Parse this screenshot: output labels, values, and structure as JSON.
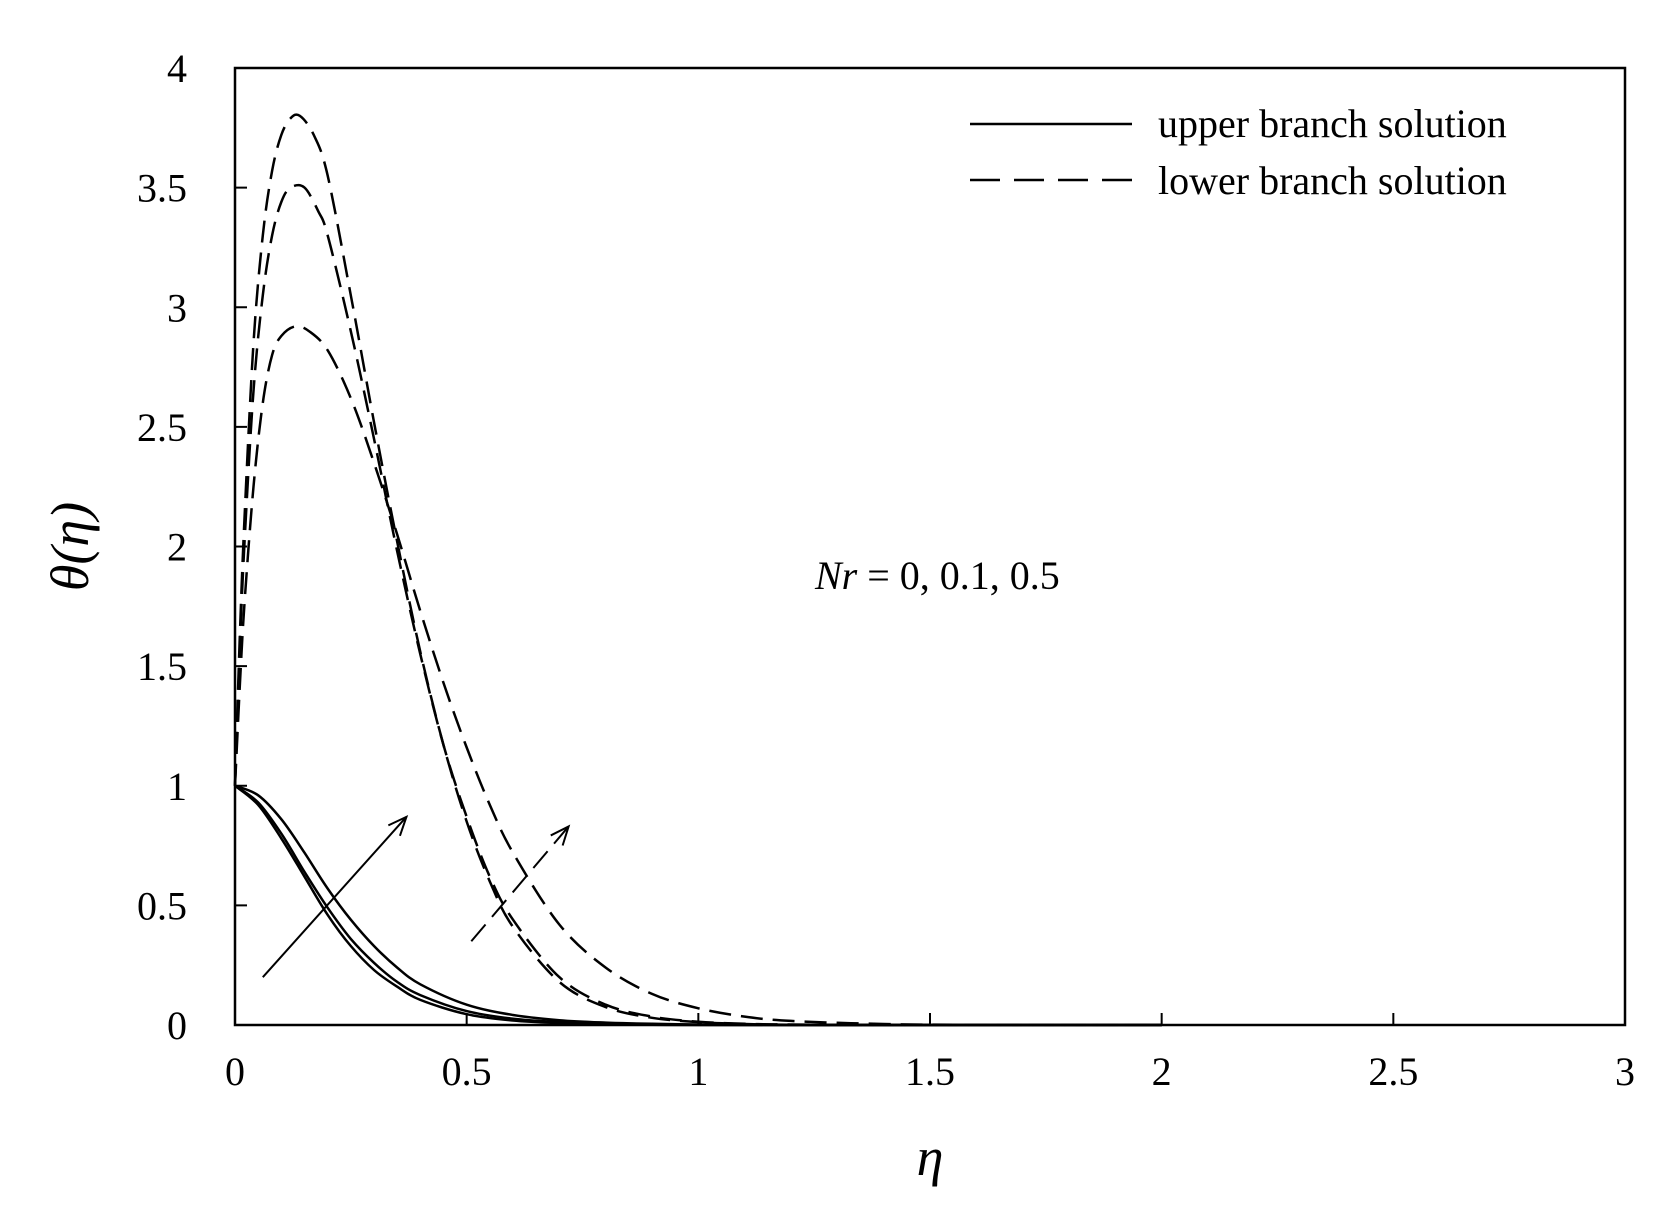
{
  "chart_data": {
    "type": "line",
    "xlabel": "η",
    "ylabel": "θ(η)",
    "xlim": [
      0,
      3
    ],
    "ylim": [
      0,
      4
    ],
    "x_ticks": [
      "0",
      "0.5",
      "1",
      "1.5",
      "2",
      "2.5",
      "3"
    ],
    "y_ticks": [
      "0",
      "0.5",
      "1",
      "1.5",
      "2",
      "2.5",
      "3",
      "3.5",
      "4"
    ],
    "grid": false,
    "legend_position": "top-right",
    "legend": [
      {
        "label": "upper branch solution",
        "style": "solid"
      },
      {
        "label": "lower branch solution",
        "style": "dashed"
      }
    ],
    "annotation": {
      "var": "Nr",
      "text": " = 0, 0.1, 0.5"
    },
    "line_color": "#000000",
    "series": [
      {
        "branch": "upper",
        "style": "solid",
        "x": [
          0,
          0.05,
          0.1,
          0.15,
          0.2,
          0.25,
          0.3,
          0.35,
          0.4,
          0.5,
          0.6,
          0.7,
          0.8,
          0.9,
          1.0,
          1.2,
          1.5,
          2.0
        ],
        "y": [
          1,
          0.96,
          0.86,
          0.72,
          0.57,
          0.44,
          0.33,
          0.24,
          0.17,
          0.085,
          0.042,
          0.02,
          0.01,
          0.005,
          0.002,
          0.0005,
          0,
          0
        ]
      },
      {
        "branch": "upper",
        "style": "solid",
        "x": [
          0,
          0.05,
          0.1,
          0.15,
          0.2,
          0.25,
          0.3,
          0.35,
          0.4,
          0.5,
          0.6,
          0.7,
          0.8,
          0.9,
          1.0,
          1.2,
          1.5,
          2.0
        ],
        "y": [
          1,
          0.93,
          0.8,
          0.64,
          0.49,
          0.36,
          0.26,
          0.18,
          0.125,
          0.058,
          0.026,
          0.012,
          0.005,
          0.002,
          0.001,
          0,
          0,
          0
        ]
      },
      {
        "branch": "upper",
        "style": "solid",
        "x": [
          0,
          0.05,
          0.1,
          0.15,
          0.2,
          0.25,
          0.3,
          0.35,
          0.4,
          0.5,
          0.6,
          0.7,
          0.8,
          0.9,
          1.0,
          1.2,
          1.5,
          2.0
        ],
        "y": [
          1,
          0.92,
          0.78,
          0.62,
          0.46,
          0.33,
          0.23,
          0.16,
          0.105,
          0.045,
          0.019,
          0.008,
          0.003,
          0.001,
          0,
          0,
          0,
          0
        ]
      },
      {
        "branch": "lower",
        "style": "dashed",
        "x": [
          0,
          0.01,
          0.02,
          0.04,
          0.06,
          0.08,
          0.1,
          0.13,
          0.16,
          0.2,
          0.25,
          0.3,
          0.35,
          0.4,
          0.45,
          0.5,
          0.55,
          0.6,
          0.7,
          0.8,
          0.9,
          1.0,
          1.1,
          1.2,
          1.4,
          1.6,
          2.0
        ],
        "y": [
          1,
          1.4,
          1.75,
          2.25,
          2.6,
          2.8,
          2.88,
          2.92,
          2.9,
          2.82,
          2.62,
          2.35,
          2.05,
          1.73,
          1.43,
          1.16,
          0.92,
          0.72,
          0.42,
          0.24,
          0.13,
          0.07,
          0.035,
          0.017,
          0.004,
          0.001,
          0
        ]
      },
      {
        "branch": "lower",
        "style": "dashed",
        "x": [
          0,
          0.01,
          0.02,
          0.04,
          0.06,
          0.08,
          0.1,
          0.12,
          0.15,
          0.18,
          0.2,
          0.25,
          0.3,
          0.35,
          0.4,
          0.45,
          0.5,
          0.55,
          0.6,
          0.7,
          0.8,
          0.9,
          1.0,
          1.1,
          1.2,
          1.4,
          2.0
        ],
        "y": [
          1,
          1.55,
          2.0,
          2.65,
          3.05,
          3.3,
          3.44,
          3.5,
          3.5,
          3.4,
          3.3,
          2.9,
          2.45,
          1.98,
          1.55,
          1.17,
          0.87,
          0.62,
          0.44,
          0.2,
          0.085,
          0.035,
          0.014,
          0.005,
          0.002,
          0,
          0
        ]
      },
      {
        "branch": "lower",
        "style": "dashed",
        "x": [
          0,
          0.01,
          0.02,
          0.04,
          0.06,
          0.08,
          0.1,
          0.12,
          0.14,
          0.17,
          0.2,
          0.25,
          0.3,
          0.35,
          0.4,
          0.45,
          0.5,
          0.55,
          0.6,
          0.7,
          0.8,
          0.9,
          1.0,
          1.1,
          1.2,
          1.4,
          2.0
        ],
        "y": [
          1,
          1.6,
          2.1,
          2.85,
          3.3,
          3.57,
          3.72,
          3.79,
          3.8,
          3.72,
          3.55,
          3.05,
          2.52,
          2.02,
          1.56,
          1.17,
          0.85,
          0.6,
          0.41,
          0.18,
          0.075,
          0.03,
          0.012,
          0.004,
          0.001,
          0,
          0
        ]
      }
    ],
    "arrows": [
      {
        "style": "solid",
        "from": [
          0.06,
          0.2
        ],
        "to": [
          0.37,
          0.87
        ]
      },
      {
        "style": "dashed",
        "from": [
          0.51,
          0.35
        ],
        "to": [
          0.72,
          0.83
        ]
      }
    ]
  }
}
